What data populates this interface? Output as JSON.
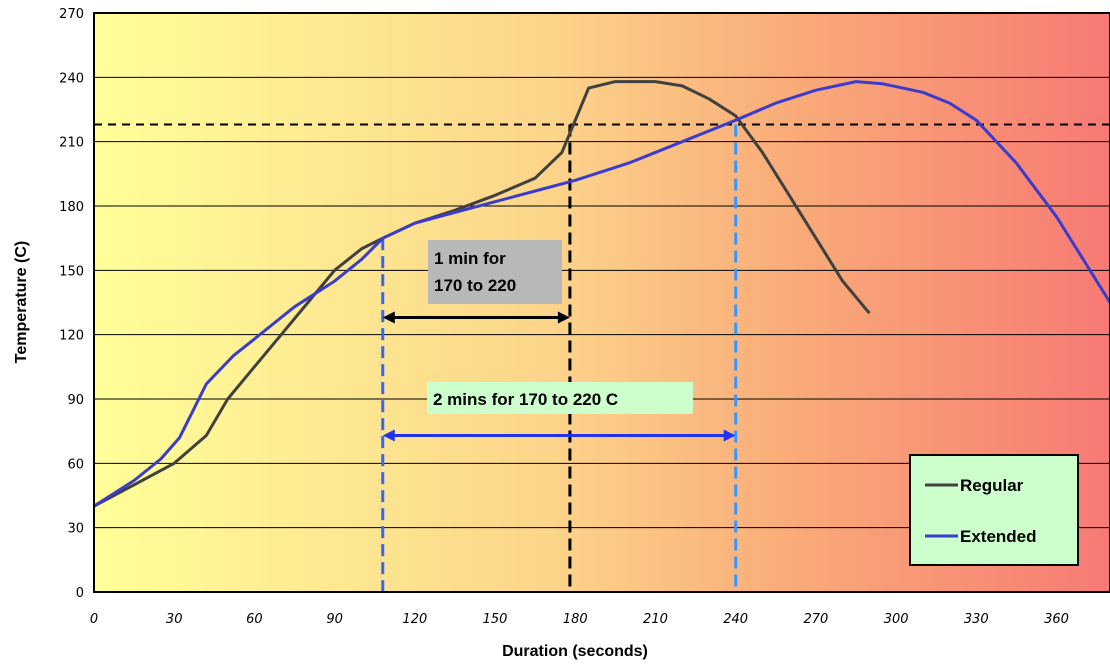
{
  "chart_data": {
    "type": "line",
    "xlabel": "Duration (seconds)",
    "ylabel": "Temperature (C)",
    "xlim": [
      0,
      380
    ],
    "ylim": [
      0,
      270
    ],
    "xticks": [
      0,
      30,
      60,
      90,
      120,
      150,
      180,
      210,
      240,
      270,
      300,
      330,
      360
    ],
    "yticks": [
      0,
      30,
      60,
      90,
      120,
      150,
      180,
      210,
      240,
      270
    ],
    "grid": "horizontal",
    "legend_position": "bottom-right",
    "background": "gradient yellow to red",
    "series": [
      {
        "name": "Regular",
        "color": "#404040",
        "points": [
          [
            0,
            40
          ],
          [
            15,
            50
          ],
          [
            30,
            60
          ],
          [
            42,
            73
          ],
          [
            50,
            90
          ],
          [
            60,
            105
          ],
          [
            70,
            120
          ],
          [
            80,
            135
          ],
          [
            90,
            150
          ],
          [
            100,
            160
          ],
          [
            108,
            165
          ],
          [
            120,
            172
          ],
          [
            135,
            178
          ],
          [
            150,
            185
          ],
          [
            165,
            193
          ],
          [
            175,
            205
          ],
          [
            180,
            220
          ],
          [
            185,
            235
          ],
          [
            195,
            238
          ],
          [
            210,
            238
          ],
          [
            220,
            236
          ],
          [
            230,
            230
          ],
          [
            240,
            222
          ],
          [
            250,
            205
          ],
          [
            260,
            185
          ],
          [
            270,
            165
          ],
          [
            280,
            145
          ],
          [
            290,
            130
          ]
        ]
      },
      {
        "name": "Extended",
        "color": "#3c3ccc",
        "points": [
          [
            0,
            40
          ],
          [
            15,
            52
          ],
          [
            25,
            62
          ],
          [
            32,
            72
          ],
          [
            42,
            97
          ],
          [
            52,
            110
          ],
          [
            60,
            118
          ],
          [
            75,
            133
          ],
          [
            90,
            145
          ],
          [
            100,
            155
          ],
          [
            108,
            165
          ],
          [
            120,
            172
          ],
          [
            135,
            177
          ],
          [
            150,
            182
          ],
          [
            165,
            187
          ],
          [
            180,
            192
          ],
          [
            200,
            200
          ],
          [
            220,
            210
          ],
          [
            240,
            220
          ],
          [
            255,
            228
          ],
          [
            270,
            234
          ],
          [
            285,
            238
          ],
          [
            295,
            237
          ],
          [
            310,
            233
          ],
          [
            320,
            228
          ],
          [
            330,
            220
          ],
          [
            345,
            200
          ],
          [
            360,
            175
          ],
          [
            370,
            155
          ],
          [
            380,
            135
          ]
        ]
      }
    ],
    "reference_lines": {
      "horizontal_y": 218,
      "vertical_x_start": 108,
      "vertical_x_regular_end": 178,
      "vertical_x_extended_end": 240
    },
    "annotations": [
      {
        "text_line1": "1 min for",
        "text_line2": "170 to 220",
        "bracket_from": 108,
        "bracket_to": 178,
        "bracket_y": 128
      },
      {
        "text": "2 mins for 170 to 220 C",
        "bracket_from": 108,
        "bracket_to": 240,
        "bracket_y": 73
      }
    ]
  }
}
